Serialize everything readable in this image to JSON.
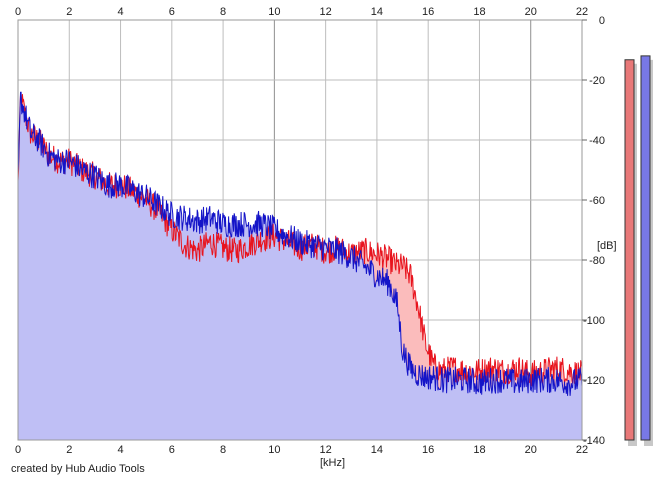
{
  "credit": "created by Hub Audio Tools",
  "colors": {
    "background": "#ffffff",
    "grid": "#bdbdbd",
    "grid_major": "#8f8f8f",
    "red_line": "#e8141e",
    "red_fill": "#fbbcbc",
    "blue_line": "#1414c8",
    "blue_fill": "#bfbff5",
    "meter_red": "#e87878",
    "meter_blue": "#7878e6"
  },
  "chart_data": {
    "type": "area",
    "title": "",
    "xlabel": "[kHz]",
    "ylabel": "[dB]",
    "xlim": [
      0,
      22
    ],
    "ylim": [
      -140,
      0
    ],
    "x_ticks": [
      "0",
      "2",
      "4",
      "6",
      "8",
      "10",
      "12",
      "14",
      "16",
      "18",
      "20",
      "22"
    ],
    "y_ticks": [
      "0",
      "-20",
      "-40",
      "-60",
      "-80",
      "-100",
      "-120",
      "-140"
    ],
    "grid": true,
    "legend": "none",
    "series": [
      {
        "color": "red",
        "x": [
          0,
          0.1,
          0.3,
          0.5,
          0.8,
          1.2,
          1.6,
          2.0,
          2.5,
          3.0,
          3.5,
          4.0,
          4.5,
          5.0,
          5.5,
          6.0,
          6.5,
          7.0,
          7.5,
          8.0,
          8.5,
          9.0,
          9.5,
          10.0,
          10.5,
          11.0,
          11.5,
          12.0,
          12.5,
          13.0,
          13.5,
          14.0,
          14.5,
          14.8,
          15.0,
          15.3,
          15.6,
          15.9,
          16.2,
          16.5,
          17.0,
          17.5,
          18.0,
          18.5,
          19.0,
          19.5,
          20.0,
          20.5,
          21.0,
          21.5,
          22.0
        ],
        "values": [
          -55,
          -26,
          -32,
          -38,
          -40,
          -45,
          -47,
          -47,
          -50,
          -52,
          -55,
          -55,
          -57,
          -60,
          -64,
          -70,
          -75,
          -77,
          -74,
          -76,
          -77,
          -75,
          -73,
          -72,
          -74,
          -76,
          -75,
          -77,
          -76,
          -78,
          -77,
          -78,
          -80,
          -82,
          -82,
          -85,
          -95,
          -108,
          -115,
          -117,
          -116,
          -117,
          -117,
          -116,
          -117,
          -116,
          -118,
          -117,
          -116,
          -117,
          -118
        ]
      },
      {
        "color": "blue",
        "x": [
          0,
          0.1,
          0.3,
          0.5,
          0.8,
          1.2,
          1.6,
          2.0,
          2.5,
          3.0,
          3.5,
          4.0,
          4.5,
          5.0,
          5.5,
          6.0,
          6.5,
          7.0,
          7.5,
          8.0,
          8.5,
          9.0,
          9.5,
          10.0,
          10.5,
          11.0,
          11.5,
          12.0,
          12.5,
          13.0,
          13.5,
          14.0,
          14.5,
          14.8,
          15.0,
          15.3,
          15.6,
          15.9,
          16.2,
          16.5,
          17.0,
          17.5,
          18.0,
          18.5,
          19.0,
          19.5,
          20.0,
          20.5,
          21.0,
          21.5,
          22.0
        ],
        "values": [
          -55,
          -26,
          -32,
          -38,
          -40,
          -45,
          -47,
          -47,
          -50,
          -52,
          -55,
          -55,
          -57,
          -59,
          -62,
          -65,
          -66,
          -67,
          -66,
          -68,
          -68,
          -68,
          -68,
          -70,
          -72,
          -74,
          -75,
          -76,
          -77,
          -79,
          -82,
          -85,
          -88,
          -95,
          -110,
          -116,
          -118,
          -119,
          -119,
          -120,
          -120,
          -120,
          -121,
          -120,
          -120,
          -121,
          -120,
          -120,
          -120,
          -121,
          -120
        ]
      }
    ],
    "meters": [
      {
        "color": "red",
        "level": 0.98
      },
      {
        "color": "blue",
        "level": 0.99
      }
    ]
  }
}
